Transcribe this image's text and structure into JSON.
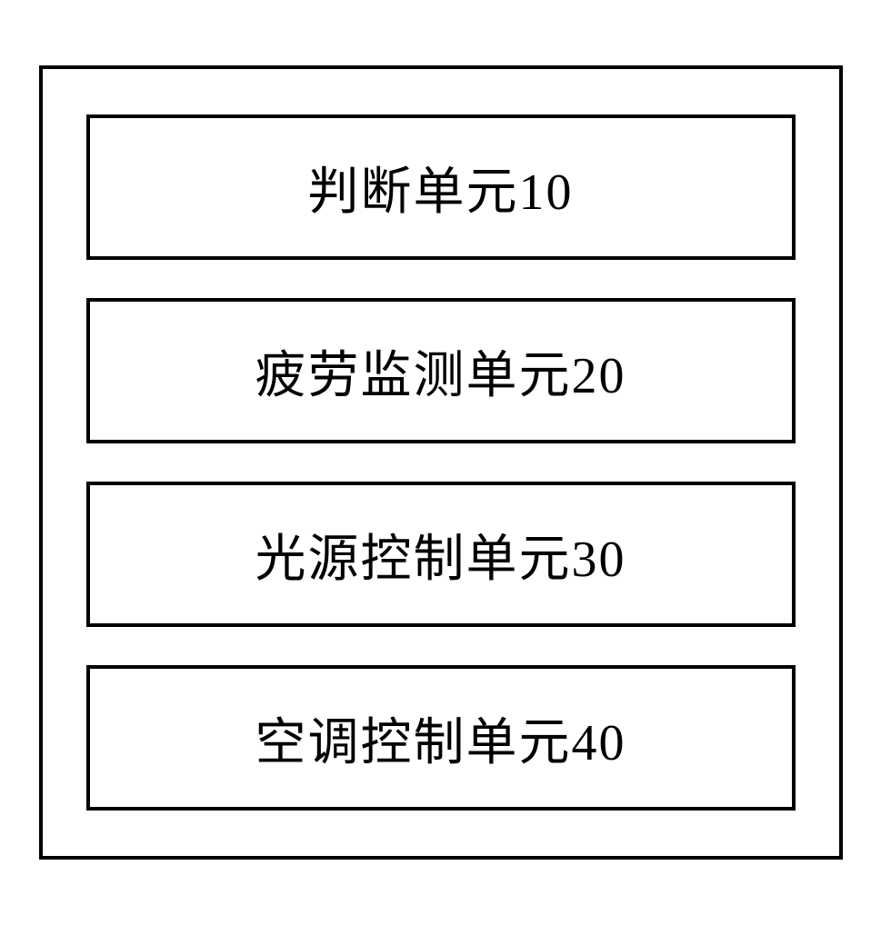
{
  "diagram": {
    "type": "block-diagram",
    "background_color": "#ffffff",
    "border_color": "#000000",
    "border_width": 4,
    "text_color": "#000000",
    "font_size": 56,
    "font_family": "SimSun",
    "outer_padding": 50,
    "block_gap": 42,
    "block_width": 780,
    "block_height": 160,
    "units": [
      {
        "label": "判断单元10"
      },
      {
        "label": "疲劳监测单元20"
      },
      {
        "label": "光源控制单元30"
      },
      {
        "label": "空调控制单元40"
      }
    ]
  }
}
